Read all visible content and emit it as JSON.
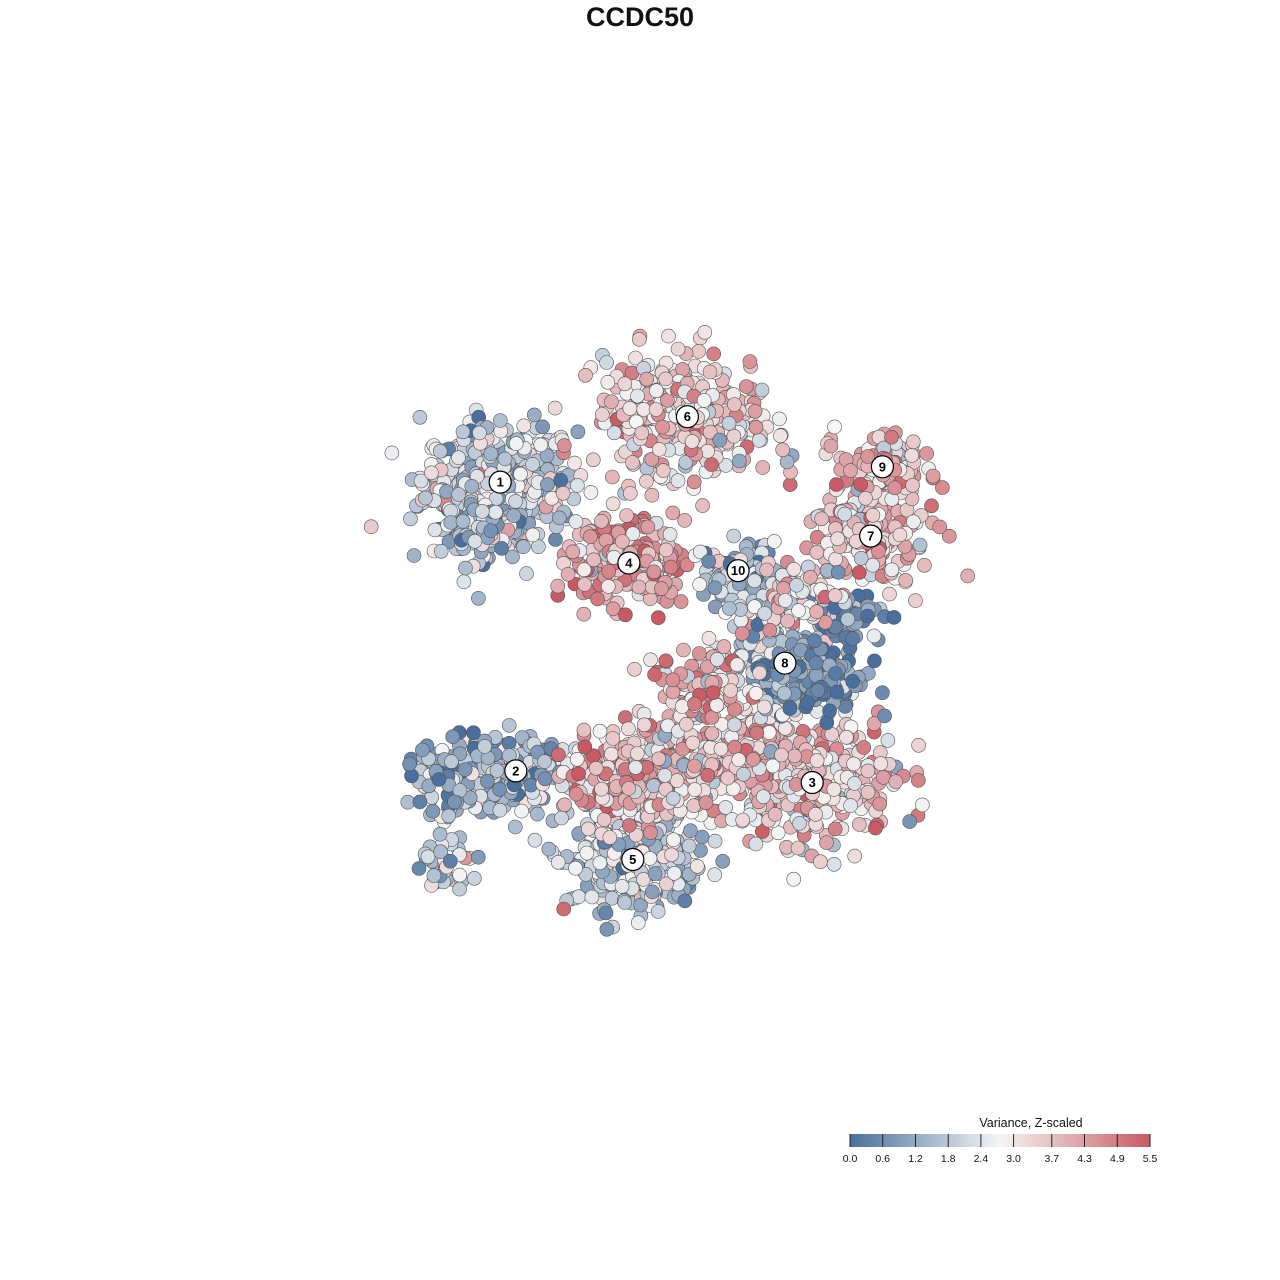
{
  "chart_data": {
    "type": "scatter",
    "title": "CCDC50",
    "xlabel": "",
    "ylabel": "",
    "grid": false,
    "colors": {
      "low": "#4a6f9c",
      "mid": "#f5f5f5",
      "high": "#c95a63",
      "point_stroke": "#555555"
    },
    "legend": {
      "title": "Variance, Z-scaled",
      "placement": "bottom-right",
      "min": 0.0,
      "max": 5.5,
      "ticks": [
        "0.0",
        "0.6",
        "1.2",
        "1.8",
        "2.4",
        "3.0",
        "3.7",
        "4.3",
        "4.9",
        "5.5"
      ],
      "tick_values": [
        0.0,
        0.6,
        1.2,
        1.8,
        2.4,
        3.0,
        3.7,
        4.3,
        4.9,
        5.5
      ]
    },
    "clusters": [
      {
        "label": "1",
        "x": -0.42,
        "y": 0.41,
        "value": 2.2,
        "spread": 0.075,
        "n": 430
      },
      {
        "label": "2",
        "x": -0.38,
        "y": -0.34,
        "value": 1.4,
        "spread": 0.05,
        "n": 160
      },
      {
        "label": "3",
        "x": 0.38,
        "y": -0.37,
        "value": 3.4,
        "spread": 0.08,
        "n": 360
      },
      {
        "label": "4",
        "x": -0.09,
        "y": 0.2,
        "value": 4.1,
        "spread": 0.055,
        "n": 230
      },
      {
        "label": "5",
        "x": -0.08,
        "y": -0.57,
        "value": 2.0,
        "spread": 0.065,
        "n": 360
      },
      {
        "label": "6",
        "x": 0.06,
        "y": 0.58,
        "value": 3.3,
        "spread": 0.085,
        "n": 320
      },
      {
        "label": "7",
        "x": 0.53,
        "y": 0.27,
        "value": 3.6,
        "spread": 0.06,
        "n": 190
      },
      {
        "label": "8",
        "x": 0.31,
        "y": -0.06,
        "value": 1.5,
        "spread": 0.055,
        "n": 160
      },
      {
        "label": "9",
        "x": 0.56,
        "y": 0.45,
        "value": 3.8,
        "spread": 0.045,
        "n": 110
      },
      {
        "label": "10",
        "x": 0.19,
        "y": 0.18,
        "value": 1.6,
        "spread": 0.035,
        "n": 90
      }
    ],
    "extra_regions": [
      {
        "x": -0.09,
        "y": -0.35,
        "value": 3.9,
        "spread": 0.06,
        "n": 200
      },
      {
        "x": 0.12,
        "y": -0.28,
        "value": 3.3,
        "spread": 0.08,
        "n": 240
      },
      {
        "x": 0.4,
        "y": -0.1,
        "value": 0.7,
        "spread": 0.045,
        "n": 140
      },
      {
        "x": 0.47,
        "y": 0.06,
        "value": 0.6,
        "spread": 0.035,
        "n": 60
      },
      {
        "x": 0.12,
        "y": -0.12,
        "value": 3.6,
        "spread": 0.05,
        "n": 100
      },
      {
        "x": -0.5,
        "y": 0.3,
        "value": 1.7,
        "spread": 0.05,
        "n": 110
      },
      {
        "x": -0.53,
        "y": -0.36,
        "value": 1.3,
        "spread": 0.05,
        "n": 120
      },
      {
        "x": -0.55,
        "y": -0.58,
        "value": 2.1,
        "spread": 0.035,
        "n": 35
      },
      {
        "x": 0.25,
        "y": 0.05,
        "value": 2.3,
        "spread": 0.03,
        "n": 50
      },
      {
        "x": 0.33,
        "y": 0.12,
        "value": 3.4,
        "spread": 0.04,
        "n": 70
      }
    ]
  }
}
